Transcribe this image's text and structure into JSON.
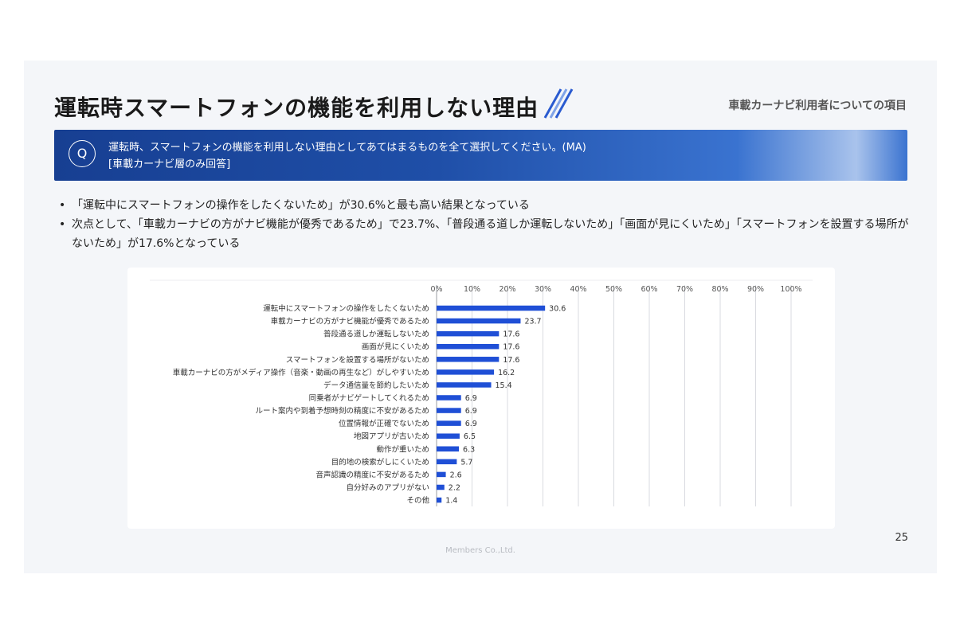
{
  "header": {
    "title": "運転時スマートフォンの機能を利用しない理由",
    "subtitle": "車載カーナビ利用者についての項目"
  },
  "question": {
    "badge": "Q",
    "line1": "運転時、スマートフォンの機能を利用しない理由としてあてはまるものを全て選択してください。(MA)",
    "line2": "[車載カーナビ層のみ回答]"
  },
  "bullets": [
    "「運転中にスマートフォンの操作をしたくないため」が30.6%と最も高い結果となっている",
    "次点として、「車載カーナビの方がナビ機能が優秀であるため」で23.7%、「普段通る道しか運転しないため」「画面が見にくいため」「スマートフォンを設置する場所がないため」が17.6%となっている"
  ],
  "chart_data": {
    "type": "bar",
    "orientation": "horizontal",
    "categories": [
      "運転中にスマートフォンの操作をしたくないため",
      "車載カーナビの方がナビ機能が優秀であるため",
      "普段通る道しか運転しないため",
      "画面が見にくいため",
      "スマートフォンを設置する場所がないため",
      "車載カーナビの方がメディア操作（音楽・動画の再生など）がしやすいため",
      "データ通信量を節約したいため",
      "同乗者がナビゲートしてくれるため",
      "ルート案内や到着予想時刻の精度に不安があるため",
      "位置情報が正確でないため",
      "地図アプリが古いため",
      "動作が重いため",
      "目的地の検索がしにくいため",
      "音声認識の精度に不安があるため",
      "自分好みのアプリがない",
      "その他"
    ],
    "values": [
      30.6,
      23.7,
      17.6,
      17.6,
      17.6,
      16.2,
      15.4,
      6.9,
      6.9,
      6.9,
      6.5,
      6.3,
      5.7,
      2.6,
      2.2,
      1.4
    ],
    "xlim": [
      0,
      100
    ],
    "ticks": [
      "0%",
      "10%",
      "20%",
      "30%",
      "40%",
      "50%",
      "60%",
      "70%",
      "80%",
      "90%",
      "100%"
    ],
    "grid": true,
    "axis_position": "top",
    "bar_color": "#1f4fd6"
  },
  "page_number": "25",
  "footer": "Members Co.,Ltd."
}
